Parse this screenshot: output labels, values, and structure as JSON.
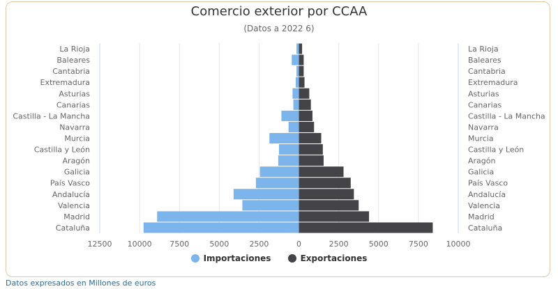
{
  "chart_data": {
    "type": "bar",
    "orientation": "horizontal-diverging",
    "title": "Comercio exterior por CCAA",
    "subtitle": "(Datos a 2022 6)",
    "categories": [
      "La Rioja",
      "Baleares",
      "Cantabria",
      "Extremadura",
      "Asturias",
      "Canarias",
      "Castilla - La Mancha",
      "Navarra",
      "Murcia",
      "Castilla y León",
      "Aragón",
      "Galicia",
      "País Vasco",
      "Andalucía",
      "Valencia",
      "Madrid",
      "Cataluña"
    ],
    "series": [
      {
        "name": "Importaciones",
        "color": "#7cb5ec",
        "values": [
          150,
          450,
          150,
          200,
          400,
          350,
          1100,
          650,
          1850,
          1250,
          1300,
          2450,
          2700,
          4100,
          3550,
          8900,
          9750
        ]
      },
      {
        "name": "Exportaciones",
        "color": "#434348",
        "values": [
          200,
          300,
          300,
          350,
          650,
          750,
          850,
          950,
          1400,
          1500,
          1550,
          2800,
          3250,
          3450,
          3750,
          4400,
          8400
        ]
      }
    ],
    "x_ticks": [
      "12500",
      "10000",
      "7500",
      "5000",
      "2500",
      "0",
      "2500",
      "5000",
      "7500",
      "10000"
    ],
    "xlim": [
      -12500,
      10000
    ],
    "grid": true,
    "legend_position": "bottom"
  },
  "footnote": "Datos expresados en Millones de euros"
}
